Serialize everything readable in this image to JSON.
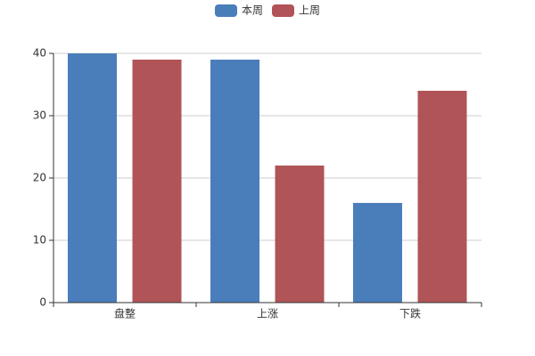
{
  "chart_data": {
    "type": "bar",
    "categories": [
      "盘整",
      "上涨",
      "下跌"
    ],
    "series": [
      {
        "name": "本周",
        "color": "#4a7ebb",
        "values": [
          40,
          39,
          16
        ]
      },
      {
        "name": "上周",
        "color": "#b05457",
        "values": [
          39,
          22,
          34
        ]
      }
    ],
    "ylim": [
      0,
      40
    ],
    "yticks": [
      0,
      10,
      20,
      30,
      40
    ],
    "grid": true,
    "legend": "top"
  }
}
